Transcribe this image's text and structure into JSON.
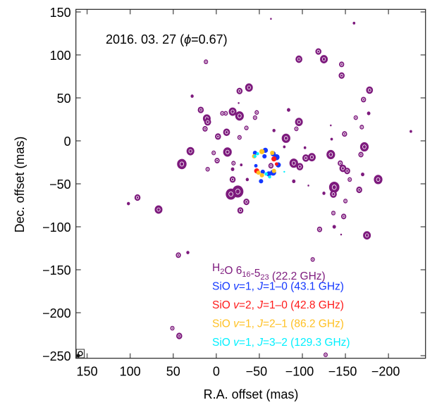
{
  "chart_data": {
    "type": "scatter",
    "title": "",
    "annotation": {
      "date": "2016. 03. 27 (",
      "phi": "ϕ",
      "phase": "=0.67)"
    },
    "xlabel": "R.A. offset (mas)",
    "ylabel": "Dec. offset (mas)",
    "xlim": [
      163,
      -243
    ],
    "ylim": [
      -253,
      153
    ],
    "x_reversed": true,
    "xticks": [
      150,
      100,
      50,
      0,
      -50,
      -100,
      -150,
      -200
    ],
    "yticks": [
      150,
      100,
      50,
      0,
      -50,
      -100,
      -150,
      -200,
      -250
    ],
    "xtick_labels": [
      "150",
      "100",
      "50",
      "0",
      "−50",
      "−100",
      "−150",
      "−200"
    ],
    "ytick_labels": [
      "150",
      "100",
      "50",
      "0",
      "−50",
      "−100",
      "−150",
      "−200",
      "−250"
    ],
    "grid": false,
    "legend_placement": "bottom-center",
    "series": [
      {
        "name": "H2O 6_16-5_23 (22.2 GHz)",
        "color": "#7d1a7d",
        "style": "contour",
        "points": [
          [
            -63.5,
            142,
            0.8
          ],
          [
            -160,
            137,
            1.5
          ],
          [
            12,
            92,
            2.5
          ],
          [
            -118.6,
            104,
            3.5
          ],
          [
            -96,
            95,
            4
          ],
          [
            -125,
            95,
            4.5
          ],
          [
            -145.6,
            89,
            3
          ],
          [
            -145.6,
            76,
            3.5
          ],
          [
            28,
            52,
            1.8
          ],
          [
            -27,
            58,
            3.5
          ],
          [
            -38,
            62,
            4.5
          ],
          [
            -26,
            44,
            1
          ],
          [
            -178,
            59,
            4
          ],
          [
            -171,
            48,
            3
          ],
          [
            18,
            36,
            3.5
          ],
          [
            11,
            26,
            4.5
          ],
          [
            10,
            22,
            4
          ],
          [
            13,
            14,
            3
          ],
          [
            -7,
            32,
            2.5
          ],
          [
            -11,
            32,
            2.5
          ],
          [
            -19,
            34,
            4.5
          ],
          [
            -27,
            29,
            5
          ],
          [
            -47,
            33,
            2.5
          ],
          [
            -45,
            27,
            2.5
          ],
          [
            -84,
            36,
            2
          ],
          [
            -96,
            22,
            4.5
          ],
          [
            -93,
            14,
            2.5
          ],
          [
            -162,
            27,
            2.5
          ],
          [
            -177,
            32,
            2
          ],
          [
            -133,
            18,
            0.8
          ],
          [
            -169,
            16,
            2.5
          ],
          [
            -35,
            15,
            2.5
          ],
          [
            -67,
            12,
            1.8
          ],
          [
            -149,
            8,
            3
          ],
          [
            -134,
            2,
            1.5
          ],
          [
            -226,
            11,
            1.5
          ],
          [
            -2,
            5,
            3.5
          ],
          [
            -12,
            10,
            4
          ],
          [
            -27,
            4,
            2.5
          ],
          [
            -81,
            3,
            5
          ],
          [
            -79,
            -7,
            1.5
          ],
          [
            -103,
            -8,
            1.5
          ],
          [
            -172,
            -7,
            5
          ],
          [
            -168,
            -16,
            3
          ],
          [
            30,
            -12,
            4.5
          ],
          [
            40,
            -27,
            5.5
          ],
          [
            3,
            -14,
            2.5
          ],
          [
            -1,
            -23,
            3
          ],
          [
            -13,
            -13,
            5
          ],
          [
            -20,
            -26,
            2.5
          ],
          [
            -29,
            -28,
            1.5
          ],
          [
            -19,
            -33,
            2
          ],
          [
            10,
            -33,
            2.5
          ],
          [
            -63.5,
            -29,
            3
          ],
          [
            -90,
            -26,
            5
          ],
          [
            -97,
            -30,
            4
          ],
          [
            -104,
            -20,
            4
          ],
          [
            -111,
            -19,
            4.5
          ],
          [
            -133,
            -16,
            5
          ],
          [
            -144,
            -26,
            3
          ],
          [
            -147,
            -32,
            4
          ],
          [
            -152,
            -35,
            3.5
          ],
          [
            -155,
            -45,
            2.5
          ],
          [
            -170,
            -39,
            2
          ],
          [
            -188,
            -45,
            5
          ],
          [
            -19,
            -45,
            3.5
          ],
          [
            -36,
            -45,
            1.8
          ],
          [
            -25,
            -59,
            6.5
          ],
          [
            -17,
            -62,
            6
          ],
          [
            -35,
            -71,
            3.5
          ],
          [
            -28,
            -81,
            3.5
          ],
          [
            -90,
            -47,
            2
          ],
          [
            -107,
            -52,
            1
          ],
          [
            -137,
            -54,
            6
          ],
          [
            -136,
            -62,
            4
          ],
          [
            -166,
            -57,
            3.5
          ],
          [
            -125,
            -61,
            1.8
          ],
          [
            -150,
            -70,
            2.5
          ],
          [
            -136,
            -84,
            2.5
          ],
          [
            -148,
            -88,
            3
          ],
          [
            -137,
            -100,
            2
          ],
          [
            -120,
            -103,
            3
          ],
          [
            -145,
            -109,
            0.8
          ],
          [
            -175,
            -110,
            4.5
          ],
          [
            91.5,
            -66,
            3.5
          ],
          [
            102,
            -73,
            1.8
          ],
          [
            67,
            -80,
            4.5
          ],
          [
            44,
            -133,
            3
          ],
          [
            33,
            -130,
            1.8
          ],
          [
            -112,
            -138,
            2.5
          ],
          [
            51,
            -218,
            2.5
          ],
          [
            43,
            -227,
            3.5
          ],
          [
            -127,
            -249,
            2.5
          ]
        ]
      },
      {
        "name": "SiO v=1, J=1–0 (43.1 GHz)",
        "color": "#1438ff",
        "style": "filled",
        "points": [
          [
            -45,
            -14,
            2.5
          ],
          [
            -57,
            -11,
            3
          ],
          [
            -56,
            -18,
            2.5
          ],
          [
            -66,
            -15,
            3
          ],
          [
            -70,
            -19,
            3.5
          ],
          [
            -72,
            -28,
            3
          ],
          [
            -46,
            -29,
            2
          ],
          [
            -66,
            -37,
            3.5
          ],
          [
            -61,
            -38.5,
            3
          ],
          [
            -52,
            -47,
            2.5
          ],
          [
            -54,
            -36,
            2.5
          ]
        ]
      },
      {
        "name": "SiO v=2, J=1–0 (42.8 GHz)",
        "color": "#ff1a1a",
        "style": "filled",
        "points": [
          [
            -47,
            -35,
            3
          ],
          [
            -67,
            -21,
            3
          ],
          [
            -70,
            -27,
            2
          ]
        ]
      },
      {
        "name": "SiO v=1, J=2–1 (86.2 GHz)",
        "color": "#ffc124",
        "style": "filled",
        "points": [
          [
            -53,
            -12.5,
            3
          ],
          [
            -44,
            -18,
            2.5
          ],
          [
            -65,
            -14,
            2.5
          ],
          [
            -49,
            -37,
            2.5
          ],
          [
            -53,
            -40,
            2.5
          ],
          [
            -67,
            -35,
            2.5
          ]
        ]
      },
      {
        "name": "SiO v=1, J=3–2 (129.3 GHz)",
        "color": "#00f0ff",
        "style": "filled",
        "points": [
          [
            -45,
            -18,
            1.8
          ],
          [
            -48,
            -15,
            1.8
          ],
          [
            -58,
            -38.5,
            2
          ],
          [
            -62,
            -42,
            1.8
          ],
          [
            -79,
            -36,
            1
          ]
        ]
      }
    ],
    "legend": [
      {
        "color": "#7d1a7d",
        "segments": [
          [
            "H",
            "n"
          ],
          [
            "2",
            "sub"
          ],
          [
            "O 6",
            "n"
          ],
          [
            "16",
            "sub"
          ],
          [
            "-5",
            "n"
          ],
          [
            "23",
            "sub"
          ],
          [
            " (22.2 GHz)",
            "n"
          ]
        ]
      },
      {
        "color": "#1438ff",
        "segments": [
          [
            "SiO ",
            "n"
          ],
          [
            "v",
            "i"
          ],
          [
            "=1, ",
            "n"
          ],
          [
            "J",
            "i"
          ],
          [
            "=1–0 (43.1 GHz)",
            "n"
          ]
        ]
      },
      {
        "color": "#ff1a1a",
        "segments": [
          [
            "SiO ",
            "n"
          ],
          [
            "v",
            "i"
          ],
          [
            "=2, ",
            "n"
          ],
          [
            "J",
            "i"
          ],
          [
            "=1–0 (42.8 GHz)",
            "n"
          ]
        ]
      },
      {
        "color": "#ffc124",
        "segments": [
          [
            "SiO ",
            "n"
          ],
          [
            "v",
            "i"
          ],
          [
            "=1, ",
            "n"
          ],
          [
            "J",
            "i"
          ],
          [
            "=2–1 (86.2 GHz)",
            "n"
          ]
        ]
      },
      {
        "color": "#00f0ff",
        "segments": [
          [
            "SiO ",
            "n"
          ],
          [
            "v",
            "i"
          ],
          [
            "=1, ",
            "n"
          ],
          [
            "J",
            "i"
          ],
          [
            "=3–2 (129.3 GHz)",
            "n"
          ]
        ]
      }
    ]
  }
}
